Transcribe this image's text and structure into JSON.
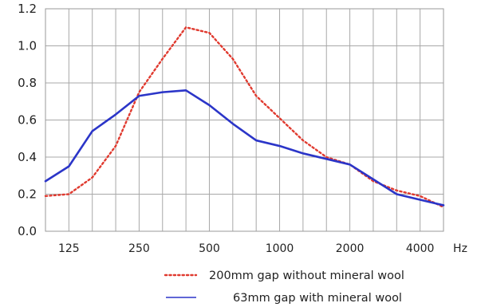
{
  "chart_data": {
    "type": "line",
    "title": "",
    "xlabel": "Hz",
    "ylabel": "",
    "ylim": [
      0,
      1.2
    ],
    "yticks": [
      "0.0",
      "0.2",
      "0.4",
      "0.6",
      "0.8",
      "1.0",
      "1.2"
    ],
    "categories": [
      "100",
      "125",
      "160",
      "200",
      "250",
      "315",
      "400",
      "500",
      "630",
      "800",
      "1000",
      "1250",
      "1600",
      "2000",
      "2500",
      "3150",
      "4000",
      "5000"
    ],
    "xtick_labels": [
      "125",
      "250",
      "500",
      "1000",
      "2000",
      "4000"
    ],
    "grid": true,
    "legend_position": "bottom",
    "series": [
      {
        "name": "200mm gap without mineral wool",
        "style": "dotted",
        "color": "#e03a2f",
        "values": [
          0.19,
          0.2,
          0.29,
          0.46,
          0.75,
          0.93,
          1.1,
          1.07,
          0.93,
          0.73,
          0.61,
          0.49,
          0.4,
          0.36,
          0.27,
          0.22,
          0.19,
          0.13
        ]
      },
      {
        "name": "63mm gap with mineral wool",
        "style": "solid",
        "color": "#2b35c8",
        "values": [
          0.27,
          0.35,
          0.54,
          0.63,
          0.73,
          0.75,
          0.76,
          0.68,
          0.58,
          0.49,
          0.46,
          0.42,
          0.39,
          0.36,
          0.28,
          0.2,
          0.17,
          0.14
        ]
      }
    ]
  }
}
